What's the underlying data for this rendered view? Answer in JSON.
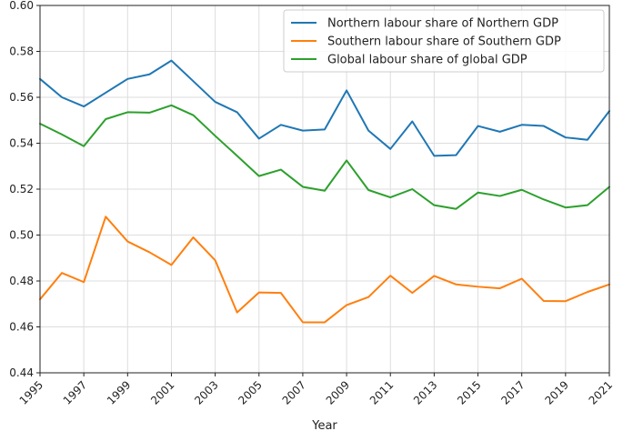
{
  "chart_data": {
    "type": "line",
    "title": "",
    "xlabel": "Year",
    "ylabel": "",
    "xlim": [
      1995,
      2021
    ],
    "ylim": [
      0.44,
      0.6
    ],
    "grid": true,
    "legend_position": "top-right",
    "x": [
      1995,
      1996,
      1997,
      1998,
      1999,
      2000,
      2001,
      2002,
      2003,
      2004,
      2005,
      2006,
      2007,
      2008,
      2009,
      2010,
      2011,
      2012,
      2013,
      2014,
      2015,
      2016,
      2017,
      2018,
      2019,
      2020,
      2021
    ],
    "x_ticks": [
      "1995",
      "1997",
      "1999",
      "2001",
      "2003",
      "2005",
      "2007",
      "2009",
      "2011",
      "2013",
      "2015",
      "2017",
      "2019",
      "2021"
    ],
    "y_ticks": [
      "0.44",
      "0.46",
      "0.48",
      "0.50",
      "0.52",
      "0.54",
      "0.56",
      "0.58",
      "0.60"
    ],
    "series": [
      {
        "name": "Northern labour share of Northern GDP",
        "color": "#1f77b4",
        "values": [
          0.568,
          0.56,
          0.556,
          0.562,
          0.568,
          0.57,
          0.576,
          0.567,
          0.558,
          0.5535,
          0.542,
          0.548,
          0.5455,
          0.546,
          0.563,
          0.5455,
          0.5375,
          0.5495,
          0.5345,
          0.5348,
          0.5475,
          0.545,
          0.548,
          0.5475,
          0.5425,
          0.5415,
          0.554
        ]
      },
      {
        "name": "Southern labour share of Southern GDP",
        "color": "#ff7f0e",
        "values": [
          0.472,
          0.4835,
          0.4795,
          0.508,
          0.4972,
          0.4925,
          0.487,
          0.499,
          0.489,
          0.4663,
          0.475,
          0.4748,
          0.462,
          0.462,
          0.4695,
          0.473,
          0.4823,
          0.4748,
          0.4822,
          0.4785,
          0.4775,
          0.4768,
          0.481,
          0.4713,
          0.4712,
          0.4752,
          0.4785
        ]
      },
      {
        "name": "Global labour share of global GDP",
        "color": "#2ca02c",
        "values": [
          0.5485,
          0.5438,
          0.5387,
          0.5505,
          0.5535,
          0.5533,
          0.5565,
          0.5522,
          0.5432,
          0.5345,
          0.5257,
          0.5285,
          0.521,
          0.5193,
          0.5325,
          0.5196,
          0.5164,
          0.52,
          0.513,
          0.5114,
          0.5185,
          0.517,
          0.5197,
          0.5155,
          0.512,
          0.513,
          0.521
        ]
      }
    ]
  }
}
